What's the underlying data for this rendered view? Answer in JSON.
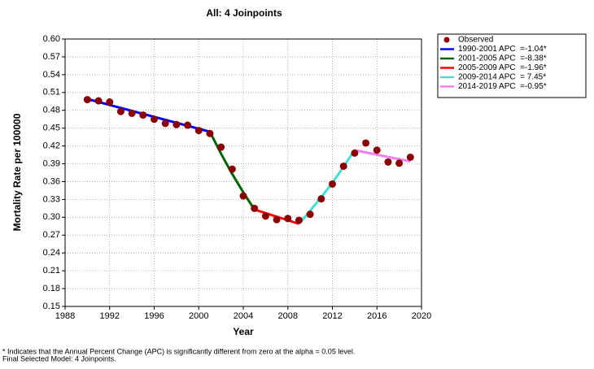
{
  "chart_data": {
    "type": "line",
    "title": "All: 4 Joinpoints",
    "x_label": "Year",
    "y_label": "Mortality Rate per 100000",
    "xlim": [
      1988,
      2020
    ],
    "xticks": [
      1988,
      1992,
      1996,
      2000,
      2004,
      2008,
      2012,
      2016,
      2020
    ],
    "ylim": [
      0.15,
      0.6
    ],
    "yticks": [
      0.15,
      0.18,
      0.21,
      0.24,
      0.27,
      {
        "value": 0.3,
        "label": "0.30"
      },
      0.33,
      0.36,
      0.39,
      0.42,
      0.45,
      0.48,
      0.51,
      0.54,
      0.57,
      {
        "value": 0.6,
        "label": "0.60"
      }
    ],
    "grid": true,
    "observed": {
      "name": "Observed",
      "color": "#8b0000",
      "x": [
        1990,
        1991,
        1992,
        1993,
        1994,
        1995,
        1996,
        1997,
        1998,
        1999,
        2000,
        2001,
        2002,
        2003,
        2004,
        2005,
        2006,
        2007,
        2008,
        2009,
        2010,
        2011,
        2012,
        2013,
        2014,
        2015,
        2016,
        2017,
        2018,
        2019
      ],
      "values": [
        0.498,
        0.496,
        0.494,
        0.478,
        0.475,
        0.472,
        0.465,
        0.458,
        0.456,
        0.455,
        0.446,
        0.441,
        0.418,
        0.381,
        0.336,
        0.315,
        0.302,
        0.296,
        0.298,
        0.295,
        0.305,
        0.331,
        0.356,
        0.386,
        0.408,
        0.425,
        0.413,
        0.393,
        0.391,
        0.401
      ]
    },
    "series": [
      {
        "name": "1990-2001 APC  =-1.04*",
        "color": "#0000ff",
        "x": [
          1990,
          2001
        ],
        "values": [
          0.499,
          0.444
        ]
      },
      {
        "name": "2001-2005 APC  =-8.38*",
        "color": "#006400",
        "x": [
          2001,
          2002,
          2003,
          2004,
          2005
        ],
        "values": [
          0.444,
          0.407,
          0.373,
          0.342,
          0.313
        ]
      },
      {
        "name": "2005-2009 APC  =-1.96*",
        "color": "#ff0000",
        "x": [
          2005,
          2009
        ],
        "values": [
          0.313,
          0.289
        ]
      },
      {
        "name": "2009-2014 APC  = 7.45*",
        "color": "#40e0d0",
        "x": [
          2009,
          2010,
          2011,
          2012,
          2013,
          2014
        ],
        "values": [
          0.289,
          0.311,
          0.334,
          0.358,
          0.385,
          0.413
        ]
      },
      {
        "name": "2014-2019 APC  =-0.95*",
        "color": "#ee82ee",
        "x": [
          2014,
          2019
        ],
        "values": [
          0.413,
          0.394
        ]
      }
    ],
    "footnotes": [
      "* Indicates that the Annual Percent Change (APC) is significantly different from zero at the alpha = 0.05 level.",
      "Final Selected Model: 4 Joinpoints."
    ]
  }
}
